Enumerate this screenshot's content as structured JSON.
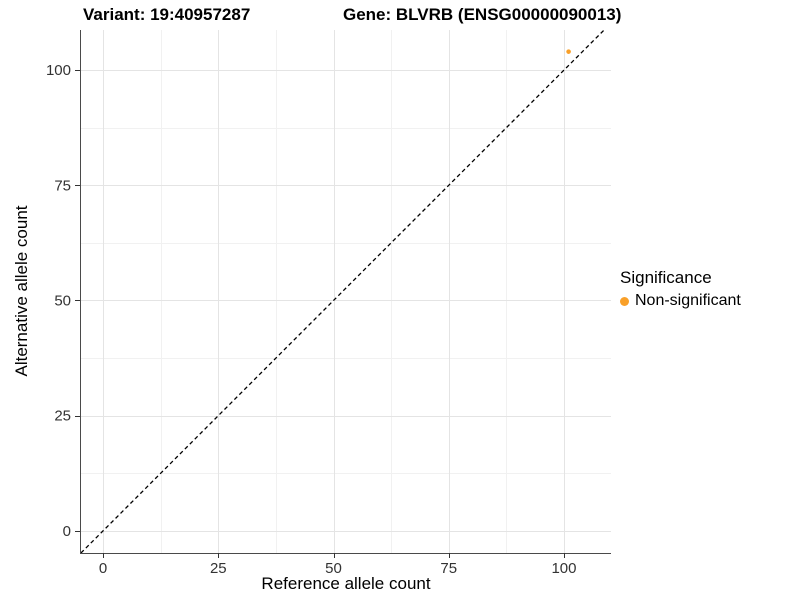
{
  "header": {
    "variant_title": "Variant: 19:40957287",
    "gene_title": "Gene: BLVRB (ENSG00000090013)"
  },
  "legend": {
    "title": "Significance",
    "items": [
      {
        "label": "Non-significant",
        "color": "#F9A029"
      }
    ]
  },
  "chart_data": {
    "type": "scatter",
    "title": "Variant: 19:40957287 — Gene: BLVRB (ENSG00000090013)",
    "xlabel": "Reference allele count",
    "ylabel": "Alternative allele count",
    "xlim": [
      -5.0,
      110.2
    ],
    "ylim": [
      -4.8,
      108.7
    ],
    "x_ticks": [
      0,
      25,
      50,
      75,
      100
    ],
    "y_ticks": [
      0,
      25,
      50,
      75,
      100
    ],
    "minor_x_ticks": [
      12.5,
      37.5,
      62.5,
      87.5
    ],
    "minor_y_ticks": [
      12.5,
      37.5,
      62.5,
      87.5
    ],
    "grid": true,
    "legend_position": "right",
    "reference_line": {
      "type": "identity",
      "style": "dashed",
      "color": "#000000"
    },
    "series": [
      {
        "name": "Non-significant",
        "color": "#F9A029",
        "points": [
          {
            "x": 101,
            "y": 104
          }
        ]
      }
    ]
  },
  "style_colors": {
    "grid_major": "#E4E4E4",
    "grid_minor": "#F1F1F1",
    "axis_line": "#4a4a4a",
    "tick_mark": "#333333",
    "tick_label": "#333333",
    "point_radius": 2.3
  }
}
